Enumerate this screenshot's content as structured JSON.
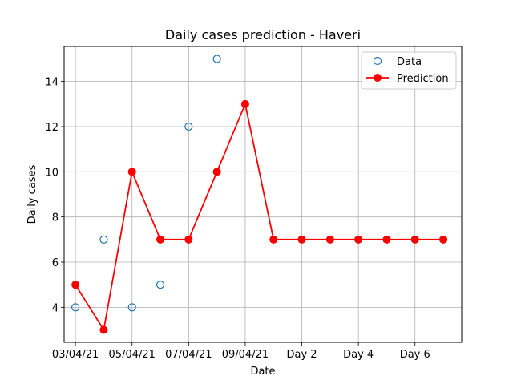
{
  "chart_data": {
    "type": "line",
    "title": "Daily cases prediction - Haveri",
    "xlabel": "Date",
    "ylabel": "Daily cases",
    "x_positions": [
      0,
      1,
      2,
      3,
      4,
      5,
      6,
      7,
      8,
      9,
      10,
      11,
      12,
      13
    ],
    "xlim": [
      -0.4,
      13.65
    ],
    "ylim": [
      2.45,
      15.55
    ],
    "x_ticks": [
      0,
      2,
      4,
      6,
      8,
      10,
      12
    ],
    "x_tick_labels": [
      "03/04/21",
      "05/04/21",
      "07/04/21",
      "09/04/21",
      "Day 2",
      "Day 4",
      "Day 6"
    ],
    "y_ticks": [
      4,
      6,
      8,
      10,
      12,
      14
    ],
    "y_tick_labels": [
      "4",
      "6",
      "8",
      "10",
      "12",
      "14"
    ],
    "grid": true,
    "legend_position": "top-right",
    "series": [
      {
        "name": "Data",
        "style": "marker-only",
        "marker": "open-circle",
        "color": "#1f77b4",
        "x": [
          0,
          1,
          2,
          3,
          4,
          5
        ],
        "values": [
          4,
          7,
          4,
          5,
          12,
          15
        ]
      },
      {
        "name": "Prediction",
        "style": "line-marker",
        "marker": "filled-circle",
        "color": "#ff0000",
        "x": [
          0,
          1,
          2,
          3,
          4,
          5,
          6,
          7,
          8,
          9,
          10,
          11,
          12,
          13
        ],
        "values": [
          5,
          3,
          10,
          7,
          7,
          10,
          13,
          7,
          7,
          7,
          7,
          7,
          7,
          7
        ]
      }
    ]
  }
}
